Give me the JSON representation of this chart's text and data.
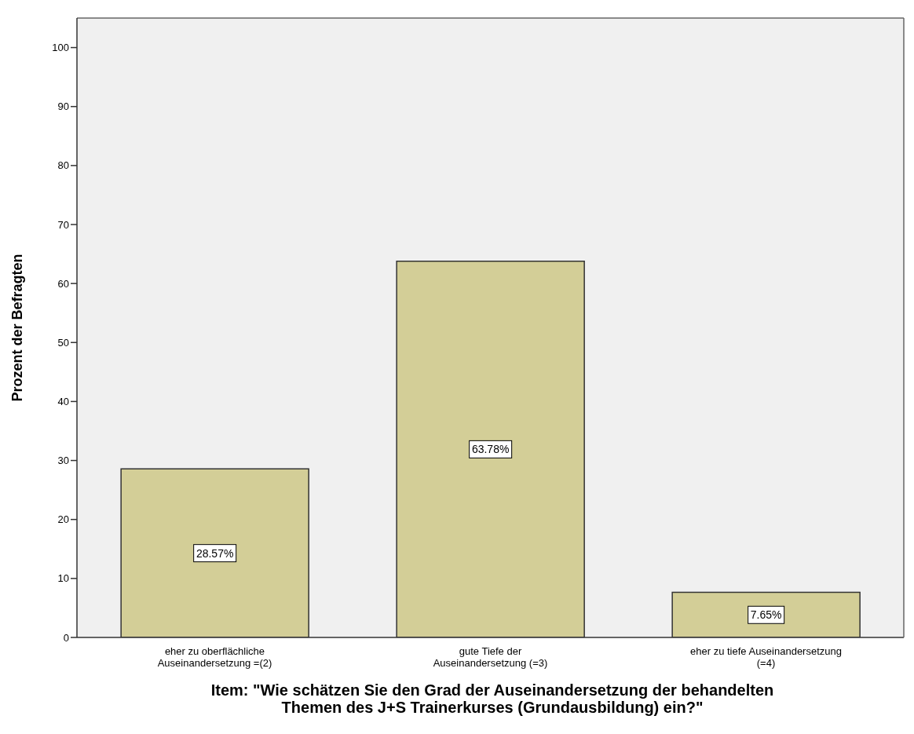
{
  "chart_data": {
    "type": "bar",
    "xlabel": "Item: \"Wie schätzen Sie den Grad der Auseinandersetzung der behandelten Themen des J+S Trainerkurses (Grundausbildung) ein?\"",
    "ylabel": "Prozent der Befragten",
    "categories": [
      "eher zu oberflächliche Auseinandersetzung =(2)",
      "gute Tiefe der Auseinandersetzung (=3)",
      "eher zu tiefe Auseinandersetzung (=4)"
    ],
    "values": [
      28.57,
      63.78,
      7.65
    ],
    "value_labels": [
      "28.57%",
      "63.78%",
      "7.65%"
    ],
    "color": "#d3ce97",
    "ylim": [
      0,
      105
    ],
    "yticks": [
      0,
      10,
      20,
      30,
      40,
      50,
      60,
      70,
      80,
      90,
      100
    ],
    "grid": false
  }
}
